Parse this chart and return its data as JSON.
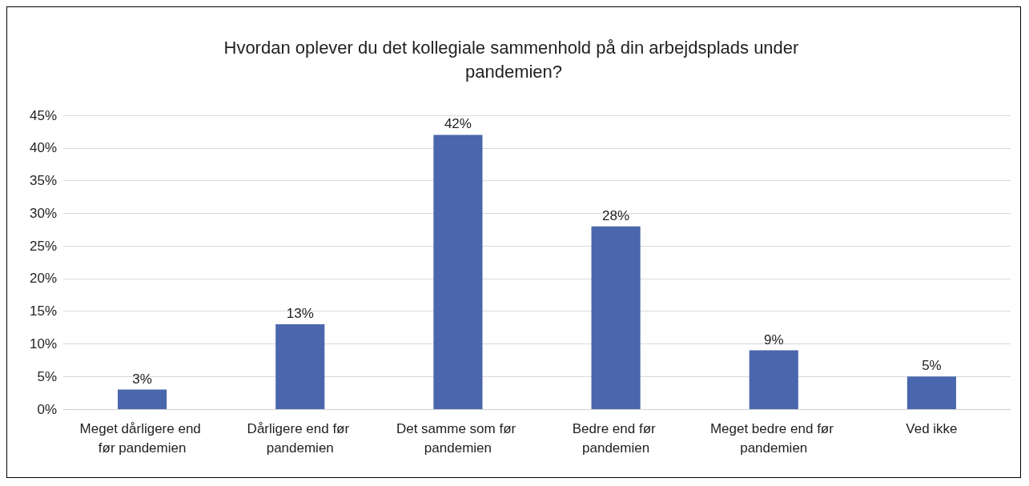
{
  "chart_data": {
    "type": "bar",
    "title": "Hvordan oplever du det kollegiale sammenhold på din arbejdsplads under pandemien?",
    "categories": [
      "Meget dårligere end før pandemien",
      "Dårligere end før pandemien",
      "Det samme som før pandemien",
      "Bedre end før pandemien",
      "Meget bedre end før pandemien",
      "Ved ikke"
    ],
    "values": [
      3,
      13,
      42,
      28,
      9,
      5
    ],
    "value_labels": [
      "3%",
      "13%",
      "42%",
      "28%",
      "9%",
      "5%"
    ],
    "color": "#4a66ac",
    "ylim": [
      0,
      45
    ],
    "yticks": [
      {
        "value": 0,
        "label": "0%"
      },
      {
        "value": 5,
        "label": "5%"
      },
      {
        "value": 10,
        "label": "10%"
      },
      {
        "value": 15,
        "label": "15%"
      },
      {
        "value": 20,
        "label": "20%"
      },
      {
        "value": 25,
        "label": "25%"
      },
      {
        "value": 30,
        "label": "30%"
      },
      {
        "value": 35,
        "label": "35%"
      },
      {
        "value": 40,
        "label": "40%"
      },
      {
        "value": 45,
        "label": "45%"
      }
    ],
    "grid": "y"
  }
}
